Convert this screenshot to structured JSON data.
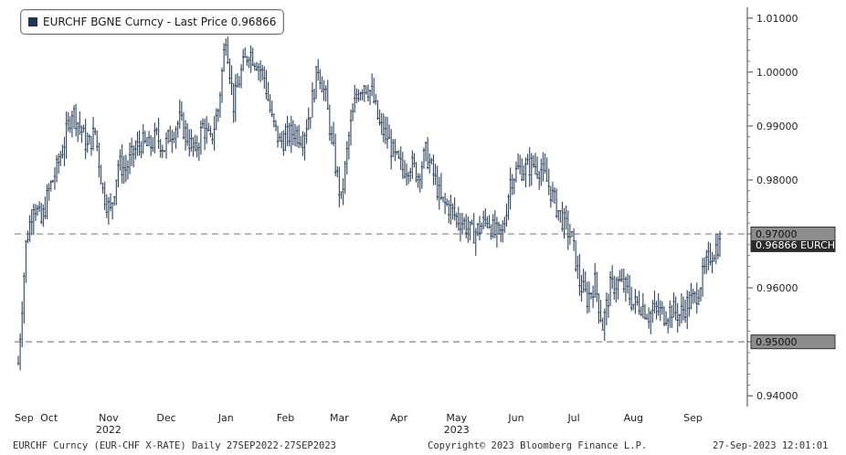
{
  "legend": {
    "label": "EURCHF BGNE Curncy - Last Price 0.96866",
    "color": "#1f3550"
  },
  "footer": {
    "left": "EURCHF Curncy (EUR-CHF X-RATE)  Daily 27SEP2022-27SEP2023",
    "center": "Copyright© 2023 Bloomberg Finance L.P.",
    "right": "27-Sep-2023 12:01:01"
  },
  "colors": {
    "series": "#2e4460",
    "reference": "#9a9a9a",
    "tag_fill": "#8c8c8c",
    "tag_dark": "#2b2b2b"
  },
  "chart_data": {
    "type": "line",
    "title": "",
    "xlabel": "",
    "ylabel": "",
    "ylim": [
      0.938,
      1.012
    ],
    "xlim": [
      0,
      365
    ],
    "grid": false,
    "legend_position": "top-left",
    "y_ticks": [
      {
        "value": 1.01,
        "label": "1.01000"
      },
      {
        "value": 1.0,
        "label": "1.00000"
      },
      {
        "value": 0.99,
        "label": "0.99000"
      },
      {
        "value": 0.98,
        "label": "0.98000"
      },
      {
        "value": 0.97,
        "label": "0.97000"
      },
      {
        "value": 0.96,
        "label": "0.96000"
      },
      {
        "value": 0.95,
        "label": "0.95000"
      },
      {
        "value": 0.94,
        "label": "0.94000"
      }
    ],
    "x_ticks": [
      {
        "day": 3,
        "label": "Sep",
        "sub": ""
      },
      {
        "day": 16,
        "label": "Oct",
        "sub": ""
      },
      {
        "day": 47,
        "label": "Nov",
        "sub": "2022"
      },
      {
        "day": 77,
        "label": "Dec",
        "sub": ""
      },
      {
        "day": 108,
        "label": "Jan",
        "sub": ""
      },
      {
        "day": 139,
        "label": "Feb",
        "sub": ""
      },
      {
        "day": 167,
        "label": "Mar",
        "sub": ""
      },
      {
        "day": 198,
        "label": "Apr",
        "sub": ""
      },
      {
        "day": 228,
        "label": "May",
        "sub": "2023"
      },
      {
        "day": 259,
        "label": "Jun",
        "sub": ""
      },
      {
        "day": 289,
        "label": "Jul",
        "sub": ""
      },
      {
        "day": 320,
        "label": "Aug",
        "sub": ""
      },
      {
        "day": 351,
        "label": "Sep",
        "sub": ""
      }
    ],
    "reference_lines": [
      {
        "value": 0.97,
        "label": "0.97000"
      },
      {
        "value": 0.95,
        "label": "0.95000"
      }
    ],
    "last_price_tag": {
      "value": 0.96866,
      "label": "0.96866 EURCHF"
    },
    "series": [
      {
        "name": "EURCHF BGNE Curncy - Last Price",
        "x": [
          0,
          4,
          8,
          12,
          16,
          20,
          24,
          28,
          32,
          36,
          40,
          44,
          48,
          52,
          56,
          60,
          64,
          68,
          72,
          76,
          80,
          84,
          88,
          92,
          96,
          100,
          104,
          108,
          112,
          116,
          120,
          124,
          128,
          132,
          136,
          140,
          144,
          148,
          152,
          156,
          160,
          164,
          168,
          172,
          176,
          180,
          184,
          188,
          192,
          196,
          200,
          204,
          208,
          212,
          216,
          220,
          224,
          228,
          232,
          236,
          240,
          244,
          248,
          252,
          256,
          260,
          264,
          268,
          272,
          276,
          280,
          284,
          288,
          292,
          296,
          300,
          304,
          308,
          312,
          316,
          320,
          324,
          328,
          332,
          336,
          340,
          344,
          348,
          352,
          356,
          360,
          364
        ],
        "y": [
          0.946,
          0.968,
          0.976,
          0.972,
          0.978,
          0.982,
          0.987,
          0.993,
          0.99,
          0.986,
          0.989,
          0.978,
          0.974,
          0.983,
          0.982,
          0.985,
          0.987,
          0.986,
          0.988,
          0.986,
          0.989,
          0.991,
          0.988,
          0.985,
          0.99,
          0.987,
          0.993,
          1.007,
          0.994,
          1.0,
          1.004,
          1.002,
          0.999,
          0.991,
          0.987,
          0.988,
          0.989,
          0.988,
          0.993,
          1.001,
          0.995,
          0.985,
          0.976,
          0.988,
          0.996,
          0.998,
          0.996,
          0.99,
          0.988,
          0.984,
          0.982,
          0.983,
          0.981,
          0.985,
          0.981,
          0.976,
          0.975,
          0.973,
          0.972,
          0.97,
          0.971,
          0.973,
          0.97,
          0.97,
          0.98,
          0.982,
          0.982,
          0.983,
          0.982,
          0.979,
          0.975,
          0.972,
          0.969,
          0.961,
          0.958,
          0.961,
          0.953,
          0.96,
          0.961,
          0.96,
          0.957,
          0.957,
          0.955,
          0.956,
          0.955,
          0.956,
          0.955,
          0.957,
          0.958,
          0.962,
          0.966,
          0.968
        ]
      }
    ]
  }
}
